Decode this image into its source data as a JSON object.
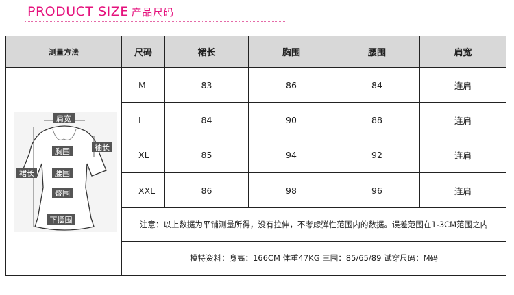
{
  "header": {
    "title_en": "PRODUCT SIZE",
    "title_cn": "产品尺码",
    "accent": "#e5127d"
  },
  "table": {
    "columns": [
      "测量方法",
      "尺码",
      "裙长",
      "胸围",
      "腰围",
      "肩宽"
    ],
    "rows": [
      {
        "size": "M",
        "length": "83",
        "bust": "86",
        "waist": "84",
        "shoulder": "连肩"
      },
      {
        "size": "L",
        "length": "84",
        "bust": "90",
        "waist": "88",
        "shoulder": "连肩"
      },
      {
        "size": "XL",
        "length": "85",
        "bust": "94",
        "waist": "92",
        "shoulder": "连肩"
      },
      {
        "size": "XXL",
        "length": "86",
        "bust": "98",
        "waist": "96",
        "shoulder": "连肩"
      }
    ],
    "note": "注意：以上数据为平铺测量所得，没有拉伸，不考虑弹性范围内的数据。误差范围在1-3CM范围之内",
    "model": "模特资料：身高：166CM 体重47KG 三围：85/65/89 试穿尺码：M码"
  },
  "figure": {
    "labels": {
      "shoulder": "肩宽",
      "sleeve": "袖长",
      "bust": "胸围",
      "length": "裙长",
      "waist": "腰围",
      "hip": "臀围",
      "hem": "下摆围"
    }
  }
}
